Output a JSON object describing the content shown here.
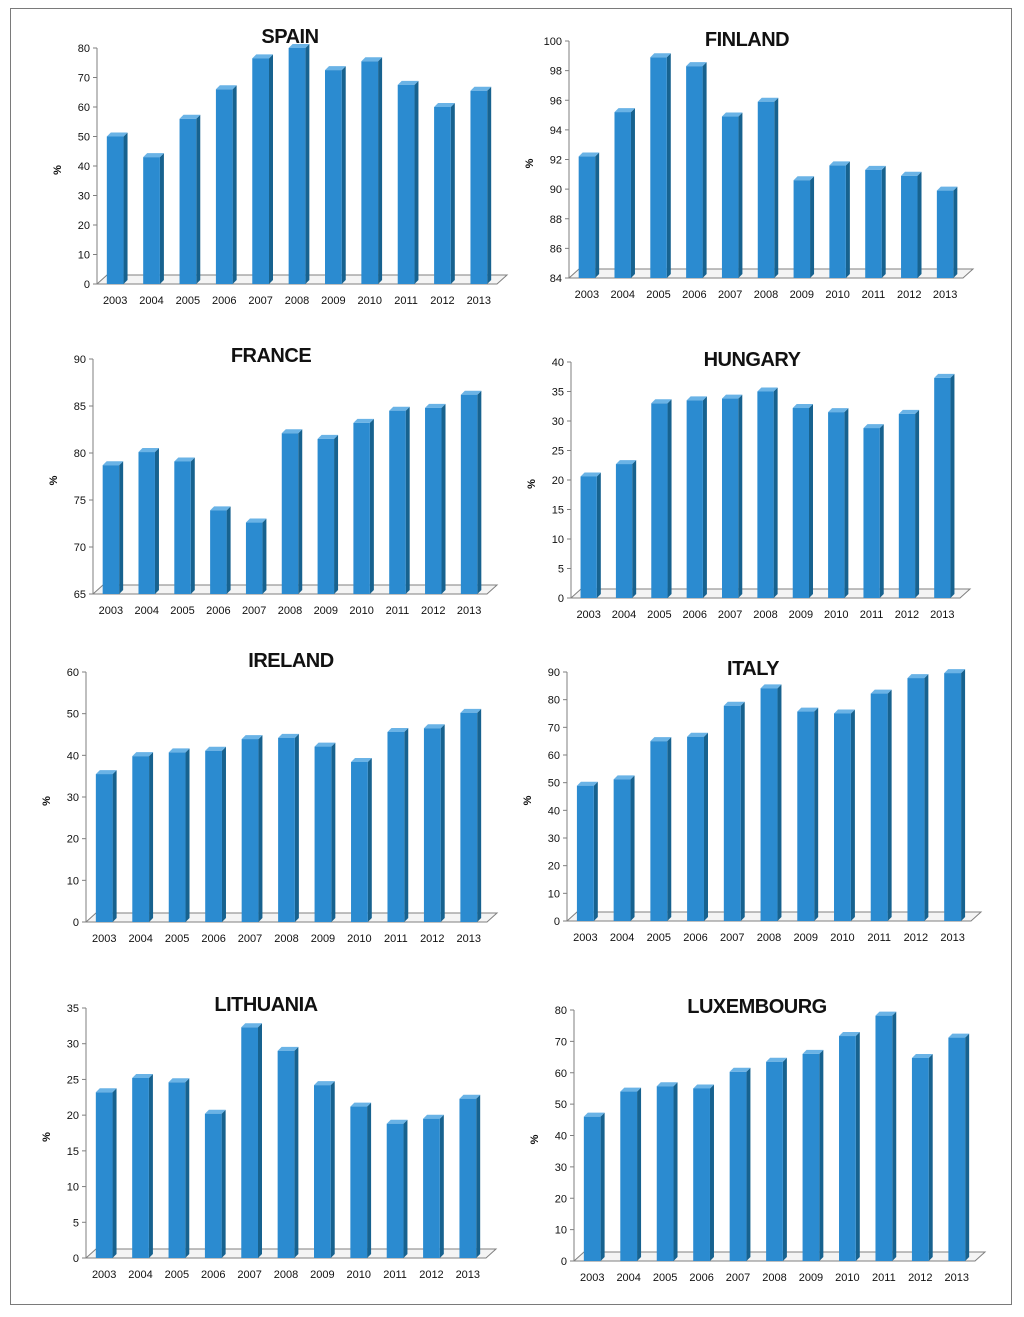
{
  "colors": {
    "bar_front": "#2b8bd0",
    "bar_side": "#17628f",
    "bar_top": "#6ab3e6",
    "axis": "#7f7f7f",
    "floor": "#f4f4f4"
  },
  "chart_data": [
    {
      "type": "bar",
      "title": "SPAIN",
      "ylabel": "%",
      "ylim": [
        0,
        80
      ],
      "ticks": [
        0,
        10,
        20,
        30,
        40,
        50,
        60,
        70,
        80
      ],
      "categories": [
        "2003",
        "2004",
        "2005",
        "2006",
        "2007",
        "2008",
        "2009",
        "2010",
        "2011",
        "2012",
        "2013"
      ],
      "values": [
        50,
        43,
        56,
        66,
        76.5,
        80,
        72.5,
        75.5,
        67.5,
        60,
        65.5
      ]
    },
    {
      "type": "bar",
      "title": "FINLAND",
      "ylabel": "%",
      "ylim": [
        84,
        100
      ],
      "ticks": [
        84,
        86,
        88,
        90,
        92,
        94,
        96,
        98,
        100
      ],
      "categories": [
        "2003",
        "2004",
        "2005",
        "2006",
        "2007",
        "2008",
        "2009",
        "2010",
        "2011",
        "2012",
        "2013"
      ],
      "values": [
        92.2,
        95.2,
        98.9,
        98.3,
        94.9,
        95.9,
        90.6,
        91.6,
        91.3,
        90.9,
        89.9
      ]
    },
    {
      "type": "bar",
      "title": "FRANCE",
      "ylabel": "%",
      "ylim": [
        65,
        90
      ],
      "ticks": [
        65,
        70,
        75,
        80,
        85,
        90
      ],
      "categories": [
        "2003",
        "2004",
        "2005",
        "2006",
        "2007",
        "2008",
        "2009",
        "2010",
        "2011",
        "2012",
        "2013"
      ],
      "values": [
        78.7,
        80.1,
        79.1,
        73.9,
        72.6,
        82.1,
        81.5,
        83.2,
        84.5,
        84.8,
        86.2
      ]
    },
    {
      "type": "bar",
      "title": "HUNGARY",
      "ylabel": "%",
      "ylim": [
        0,
        40
      ],
      "ticks": [
        0,
        5,
        10,
        15,
        20,
        25,
        30,
        35,
        40
      ],
      "categories": [
        "2003",
        "2004",
        "2005",
        "2006",
        "2007",
        "2008",
        "2009",
        "2010",
        "2011",
        "2012",
        "2013"
      ],
      "values": [
        20.6,
        22.7,
        33,
        33.5,
        33.8,
        35,
        32.2,
        31.5,
        28.8,
        31.2,
        37.3
      ]
    },
    {
      "type": "bar",
      "title": "IRELAND",
      "ylabel": "%",
      "ylim": [
        0,
        60
      ],
      "ticks": [
        0,
        10,
        20,
        30,
        40,
        50,
        60
      ],
      "categories": [
        "2003",
        "2004",
        "2005",
        "2006",
        "2007",
        "2008",
        "2009",
        "2010",
        "2011",
        "2012",
        "2013"
      ],
      "values": [
        35.5,
        39.8,
        40.7,
        41.1,
        43.9,
        44.2,
        42.1,
        38.4,
        45.6,
        46.5,
        50.2
      ]
    },
    {
      "type": "bar",
      "title": "ITALY",
      "ylabel": "%",
      "ylim": [
        0,
        90
      ],
      "ticks": [
        0,
        10,
        20,
        30,
        40,
        50,
        60,
        70,
        80,
        90
      ],
      "categories": [
        "2003",
        "2004",
        "2005",
        "2006",
        "2007",
        "2008",
        "2009",
        "2010",
        "2011",
        "2012",
        "2013"
      ],
      "values": [
        48.9,
        51.2,
        65,
        66.6,
        77.8,
        84.1,
        75.7,
        75,
        82.2,
        87.8,
        89.6
      ]
    },
    {
      "type": "bar",
      "title": "LITHUANIA",
      "ylabel": "%",
      "ylim": [
        0,
        35
      ],
      "ticks": [
        0,
        5,
        10,
        15,
        20,
        25,
        30,
        35
      ],
      "categories": [
        "2003",
        "2004",
        "2005",
        "2006",
        "2007",
        "2008",
        "2009",
        "2010",
        "2011",
        "2012",
        "2013"
      ],
      "values": [
        23.2,
        25.2,
        24.6,
        20.2,
        32.3,
        29,
        24.2,
        21.2,
        18.8,
        19.5,
        22.3
      ]
    },
    {
      "type": "bar",
      "title": "LUXEMBOURG",
      "ylabel": "%",
      "ylim": [
        0,
        80
      ],
      "ticks": [
        0,
        10,
        20,
        30,
        40,
        50,
        60,
        70,
        80
      ],
      "categories": [
        "2003",
        "2004",
        "2005",
        "2006",
        "2007",
        "2008",
        "2009",
        "2010",
        "2011",
        "2012",
        "2013"
      ],
      "values": [
        46,
        54,
        55.7,
        55,
        60.3,
        63.5,
        66,
        71.7,
        78.2,
        64.7,
        71.2
      ]
    }
  ]
}
